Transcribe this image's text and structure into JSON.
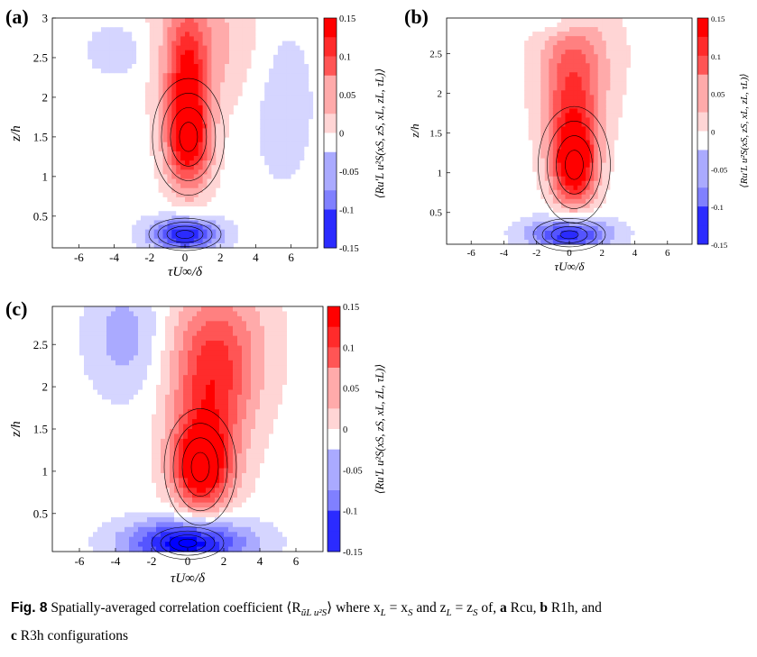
{
  "panels": [
    {
      "id": "a",
      "label": "(a)",
      "xticks": [
        "-6",
        "-4",
        "-2",
        "0",
        "2",
        "4",
        "6"
      ],
      "yticks": [
        "0.5",
        "1",
        "1.5",
        "2",
        "2.5",
        "3"
      ],
      "xlabel": "τU∞/δ",
      "ylabel": "z/h",
      "cblabel": "⟨Ru′L u²S(xS, zS, xL, zL, τL)⟩",
      "cbticks": [
        "0.15",
        "0.1",
        "0.05",
        "0",
        "-0.05",
        "-0.1",
        "-0.15"
      ]
    },
    {
      "id": "b",
      "label": "(b)",
      "xticks": [
        "-6",
        "-4",
        "-2",
        "0",
        "2",
        "4",
        "6"
      ],
      "yticks": [
        "0.5",
        "1",
        "1.5",
        "2",
        "2.5"
      ],
      "xlabel": "τU∞/δ",
      "ylabel": "z/h",
      "cblabel": "⟨Ru′L u²S(xS, zS, xL, zL, τL)⟩",
      "cbticks": [
        "0.15",
        "0.1",
        "0.05",
        "0",
        "-0.05",
        "-0.1",
        "-0.15"
      ]
    },
    {
      "id": "c",
      "label": "(c)",
      "xticks": [
        "-6",
        "-4",
        "-2",
        "0",
        "2",
        "4",
        "6"
      ],
      "yticks": [
        "0.5",
        "1",
        "1.5",
        "2",
        "2.5"
      ],
      "xlabel": "τU∞/δ",
      "ylabel": "z/h",
      "cblabel": "⟨Ru′L u²S(xS, zS, xL, zL, τL)⟩",
      "cbticks": [
        "0.15",
        "0.1",
        "0.05",
        "0",
        "-0.05",
        "-0.1",
        "-0.15"
      ]
    }
  ],
  "caption": {
    "fig": "Fig. 8",
    "text1": " Spatially-averaged correlation coefficient ⟨R",
    "sub": "ũL u²S",
    "text2": "⟩ where x",
    "text3": "L",
    "text4": " = x",
    "text5": "S",
    "text6": " and z",
    "text7": "L",
    "text8": " = z",
    "text9": "S",
    "text10": " of, ",
    "a_letter": "a",
    "a_name": " Rcu, ",
    "b_letter": "b",
    "b_name": " R1h, and",
    "c_letter": "c",
    "c_name": " R3h configurations"
  },
  "chart_data": [
    {
      "type": "heatmap",
      "panel": "a",
      "x_range": [
        -7.5,
        7.5
      ],
      "y_range": [
        0.1,
        3.0
      ],
      "color_range": [
        -0.15,
        0.15
      ],
      "peaks": [
        {
          "x": 0.2,
          "y": 1.5,
          "value": 0.15
        },
        {
          "x": 0,
          "y": 0.27,
          "value": -0.14
        }
      ]
    },
    {
      "type": "heatmap",
      "panel": "b",
      "x_range": [
        -7.5,
        7.5
      ],
      "y_range": [
        0.1,
        2.95
      ],
      "color_range": [
        -0.15,
        0.15
      ],
      "peaks": [
        {
          "x": 0.3,
          "y": 1.1,
          "value": 0.15
        },
        {
          "x": 0,
          "y": 0.22,
          "value": -0.13
        }
      ]
    },
    {
      "type": "heatmap",
      "panel": "c",
      "x_range": [
        -7.5,
        7.5
      ],
      "y_range": [
        0.05,
        2.95
      ],
      "color_range": [
        -0.15,
        0.15
      ],
      "peaks": [
        {
          "x": 0.7,
          "y": 1.05,
          "value": 0.15
        },
        {
          "x": 0,
          "y": 0.15,
          "value": -0.15
        }
      ]
    }
  ]
}
